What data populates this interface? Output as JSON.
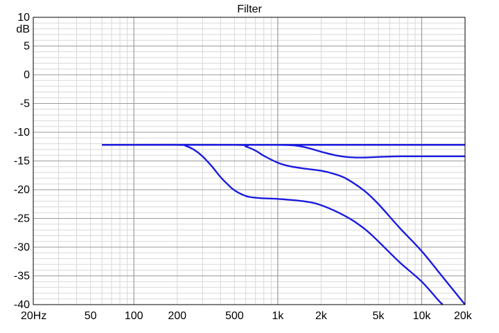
{
  "chart_data": {
    "type": "line",
    "title": "Filter",
    "ylabel": "dB",
    "xlabel": "",
    "x_scale": "log",
    "xlim": [
      20,
      20000
    ],
    "ylim": [
      -40,
      10
    ],
    "grid": true,
    "x_ticks": [
      {
        "value": 20,
        "label": "20Hz"
      },
      {
        "value": 50,
        "label": "50"
      },
      {
        "value": 100,
        "label": "100"
      },
      {
        "value": 200,
        "label": "200"
      },
      {
        "value": 500,
        "label": "500"
      },
      {
        "value": 1000,
        "label": "1k"
      },
      {
        "value": 2000,
        "label": "2k"
      },
      {
        "value": 5000,
        "label": "5k"
      },
      {
        "value": 10000,
        "label": "10k"
      },
      {
        "value": 20000,
        "label": "20k"
      }
    ],
    "y_ticks": [
      {
        "value": 10,
        "label": "10"
      },
      {
        "value": 5,
        "label": "5"
      },
      {
        "value": 0,
        "label": "0"
      },
      {
        "value": -5,
        "label": "-5"
      },
      {
        "value": -10,
        "label": "-10"
      },
      {
        "value": -15,
        "label": "-15"
      },
      {
        "value": -20,
        "label": "-20"
      },
      {
        "value": -25,
        "label": "-25"
      },
      {
        "value": -30,
        "label": "-30"
      },
      {
        "value": -35,
        "label": "-35"
      },
      {
        "value": -40,
        "label": "-40"
      }
    ],
    "colors": {
      "line": "#1a1ae0",
      "grid_major": "#9a9a9a",
      "grid_minor": "#d8d8d8",
      "axis": "#000000"
    },
    "series": [
      {
        "x": [
          60,
          100,
          500,
          1000,
          2000,
          5000,
          10000,
          20000
        ],
        "y": [
          -12.2,
          -12.2,
          -12.2,
          -12.2,
          -12.2,
          -12.2,
          -12.2,
          -12.2
        ]
      },
      {
        "x": [
          60,
          500,
          1000,
          1300,
          1600,
          2000,
          2500,
          3000,
          3500,
          4000,
          5000,
          7000,
          10000,
          15000,
          20000
        ],
        "y": [
          -12.2,
          -12.2,
          -12.2,
          -12.3,
          -12.7,
          -13.4,
          -14.0,
          -14.3,
          -14.4,
          -14.4,
          -14.3,
          -14.2,
          -14.2,
          -14.2,
          -14.2
        ]
      },
      {
        "x": [
          60,
          500,
          600,
          700,
          800,
          1000,
          1200,
          1500,
          2000,
          2500,
          3000,
          4000,
          5000,
          7000,
          10000,
          14000,
          20000
        ],
        "y": [
          -12.2,
          -12.2,
          -12.5,
          -13.2,
          -14.1,
          -15.3,
          -15.9,
          -16.3,
          -16.7,
          -17.3,
          -18.1,
          -20.2,
          -22.5,
          -26.6,
          -30.7,
          -35.2,
          -40
        ]
      },
      {
        "x": [
          60,
          200,
          230,
          260,
          300,
          350,
          400,
          450,
          500,
          600,
          700,
          800,
          1000,
          1500,
          2000,
          3000,
          4000,
          5000,
          7000,
          10000,
          13000,
          14000
        ],
        "y": [
          -12.2,
          -12.2,
          -12.4,
          -13.0,
          -14.2,
          -16.0,
          -17.8,
          -19.1,
          -20.1,
          -21.1,
          -21.4,
          -21.5,
          -21.6,
          -22.0,
          -22.7,
          -24.7,
          -26.8,
          -29.0,
          -32.6,
          -36.0,
          -39.2,
          -40
        ]
      }
    ]
  }
}
